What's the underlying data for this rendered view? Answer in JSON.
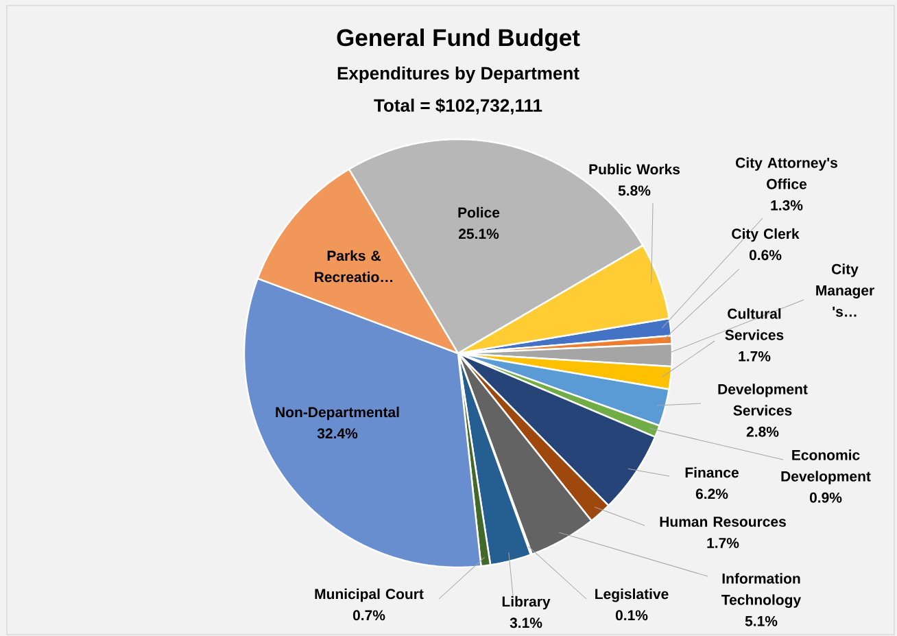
{
  "chart_data": {
    "type": "pie",
    "title": "General Fund Budget",
    "subtitle": "Expenditures by Department",
    "annotations": [
      "Total = $102,732,111"
    ],
    "categories": [
      "City Attorney's Office",
      "City Clerk",
      "City Manager 's…",
      "Cultural Services",
      "Development Services",
      "Economic Development",
      "Finance",
      "Human Resources",
      "Information Technology",
      "Legislative",
      "Library",
      "Municipal Court",
      "Non-Departmental",
      "Parks & Recreatio…",
      "Police",
      "Public Works"
    ],
    "values": [
      1.3,
      0.6,
      1.7,
      1.7,
      2.8,
      0.9,
      6.2,
      1.7,
      5.1,
      0.1,
      3.1,
      0.7,
      32.4,
      10.8,
      25.1,
      5.8
    ],
    "value_labels": [
      "1.3%",
      "0.6%",
      null,
      "1.7%",
      "2.8%",
      "0.9%",
      "6.2%",
      "1.7%",
      "5.1%",
      "0.1%",
      "3.1%",
      "0.7%",
      "32.4%",
      null,
      "25.1%",
      "5.8%"
    ],
    "colors": [
      "#4472c4",
      "#ed7d31",
      "#a5a5a5",
      "#ffc000",
      "#5b9bd5",
      "#70ad47",
      "#264478",
      "#9e480e",
      "#636363",
      "#997300",
      "#255e91",
      "#43682b",
      "#698ed0",
      "#f1975a",
      "#b7b7b7",
      "#ffcd33"
    ]
  }
}
